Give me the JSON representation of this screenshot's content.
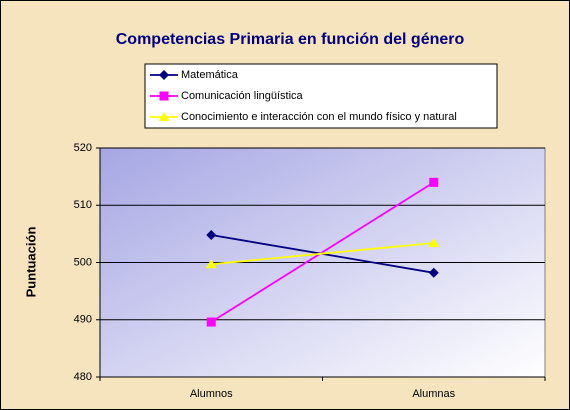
{
  "chart_data": {
    "type": "line",
    "title": "Competencias Primaria en función del género",
    "y_label": "Puntuación",
    "categories": [
      "Alumnos",
      "Alumnas"
    ],
    "series": [
      {
        "name": "Matemática",
        "color": "#000080",
        "marker": "diamond",
        "values": [
          504.8,
          498.2
        ]
      },
      {
        "name": "Comunicación lingüística",
        "color": "#ff00ff",
        "marker": "square",
        "values": [
          489.6,
          514
        ]
      },
      {
        "name": "Conocimiento e interacción con el mundo físico y natural",
        "color": "#ffff00",
        "marker": "triangle",
        "values": [
          499.7,
          503.4
        ]
      }
    ],
    "ylim": [
      480,
      520
    ],
    "yticks": [
      480,
      490,
      500,
      510,
      520
    ],
    "grid": true,
    "legend": "top"
  }
}
